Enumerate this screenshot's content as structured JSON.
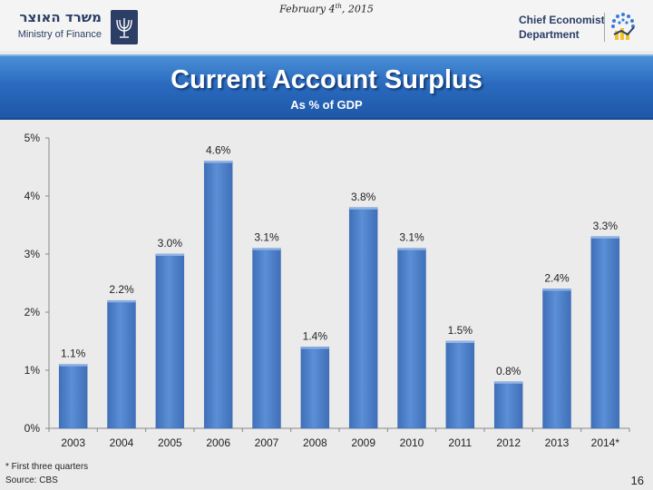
{
  "header": {
    "date_main": "February 4",
    "date_sup": "th",
    "date_year": ", 2015",
    "ministry_hebrew": "משרד האוצר",
    "ministry_english": "Ministry of Finance",
    "department_line1": "Chief Economist",
    "department_line2": "Department"
  },
  "banner": {
    "title": "Current Account Surplus",
    "subtitle": "As % of GDP"
  },
  "colors": {
    "bar": "#4f81c9",
    "bar_edge": "#3a6ab0",
    "banner": "#2a6bbf"
  },
  "chart_data": {
    "type": "bar",
    "title": "Current Account Surplus",
    "subtitle": "As % of GDP",
    "categories": [
      "2003",
      "2004",
      "2005",
      "2006",
      "2007",
      "2008",
      "2009",
      "2010",
      "2011",
      "2012",
      "2013",
      "2014*"
    ],
    "values": [
      1.1,
      2.2,
      3.0,
      4.6,
      3.1,
      1.4,
      3.8,
      3.1,
      1.5,
      0.8,
      2.4,
      3.3
    ],
    "data_labels": [
      "1.1%",
      "2.2%",
      "3.0%",
      "4.6%",
      "3.1%",
      "1.4%",
      "3.8%",
      "3.1%",
      "1.5%",
      "0.8%",
      "2.4%",
      "3.3%"
    ],
    "y_ticks": [
      "0%",
      "1%",
      "2%",
      "3%",
      "4%",
      "5%"
    ],
    "ylim": [
      0,
      5
    ],
    "grid": false,
    "legend": "none"
  },
  "footer": {
    "footnote": "* First three quarters",
    "source": "Source: CBS",
    "page_number": "16"
  }
}
